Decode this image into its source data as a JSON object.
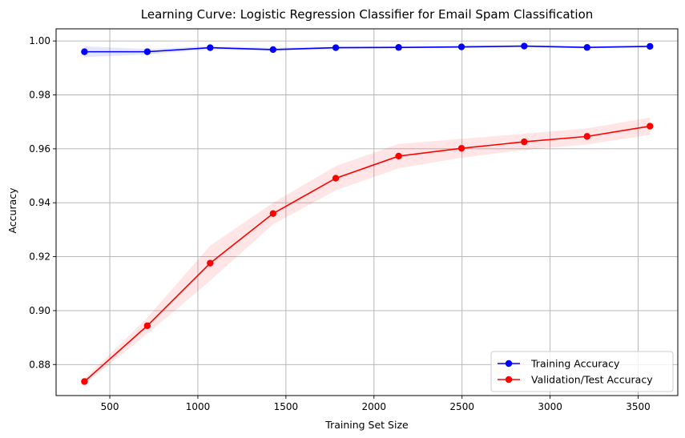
{
  "chart_data": {
    "type": "line",
    "title": "Learning Curve: Logistic Regression Classifier for Email Spam Classification",
    "xlabel": "Training Set Size",
    "ylabel": "Accuracy",
    "xlim": [
      195,
      3725
    ],
    "ylim": [
      0.8685,
      1.0045
    ],
    "xticks": [
      500,
      1000,
      1500,
      2000,
      2500,
      3000,
      3500
    ],
    "xtick_labels": [
      "500",
      "1000",
      "1500",
      "2000",
      "2500",
      "3000",
      "3500"
    ],
    "yticks": [
      0.88,
      0.9,
      0.92,
      0.94,
      0.96,
      0.98,
      1.0
    ],
    "ytick_labels": [
      "0.88",
      "0.90",
      "0.92",
      "0.94",
      "0.96",
      "0.98",
      "1.00"
    ],
    "grid": true,
    "legend_position": "bottom-right",
    "x": [
      356,
      713,
      1070,
      1427,
      1783,
      2140,
      2497,
      2853,
      3210,
      3567
    ],
    "series": [
      {
        "name": "Training Accuracy",
        "color": "#0000ff",
        "band_color": "#0000ff",
        "marker": "circle",
        "values": [
          0.996,
          0.996,
          0.9975,
          0.9968,
          0.9975,
          0.9976,
          0.9978,
          0.9981,
          0.9976,
          0.998
        ],
        "band_halfwidth": [
          0.002,
          0.001,
          0.0006,
          0.0006,
          0.0005,
          0.0004,
          0.0004,
          0.0003,
          0.0004,
          0.0003
        ]
      },
      {
        "name": "Validation/Test Accuracy",
        "color": "#ff0000",
        "band_color": "#ff0000",
        "marker": "circle",
        "values": [
          0.8737,
          0.8944,
          0.9176,
          0.936,
          0.9491,
          0.9573,
          0.9602,
          0.9626,
          0.9646,
          0.9684
        ],
        "band_halfwidth": [
          0.001,
          0.003,
          0.0065,
          0.004,
          0.0045,
          0.0045,
          0.0035,
          0.003,
          0.003,
          0.0032
        ]
      }
    ]
  }
}
